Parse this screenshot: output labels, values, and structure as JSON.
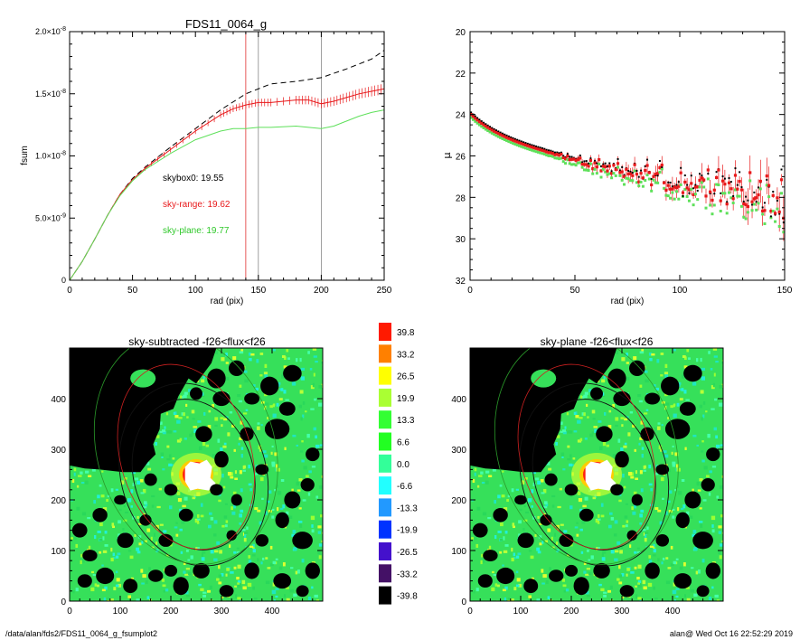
{
  "footer": {
    "left": "/data/alan/fds2/FDS11_0064_g_fsumplot2",
    "right": "alan@  Wed Oct 16 22:52:29 2019"
  },
  "colors": {
    "total": "#000000",
    "sky_range": "#e8181a",
    "sky_plane": "#5ee05a",
    "vline_red": "#e03030",
    "vline_grey": "#888888"
  },
  "chart_data": [
    {
      "type": "line",
      "title": "FDS11_0064_g",
      "xlabel": "rad (pix)",
      "ylabel": "fsum",
      "xlim": [
        0,
        250
      ],
      "ylim": [
        0,
        2e-08
      ],
      "xticks": [
        "0",
        "50",
        "100",
        "150",
        "200",
        "250"
      ],
      "yticks": [
        {
          "v": 0,
          "label": "0"
        },
        {
          "v": 5e-09,
          "label": "5.0×10",
          "exp": "-9"
        },
        {
          "v": 1e-08,
          "label": "1.0×10",
          "exp": "-8"
        },
        {
          "v": 1.5e-08,
          "label": "1.5×10",
          "exp": "-8"
        },
        {
          "v": 2e-08,
          "label": "2.0×10",
          "exp": "-8"
        }
      ],
      "vlines": [
        140,
        150,
        200
      ],
      "annotations": [
        {
          "text": "skybox0: 19.55",
          "color": "#000000"
        },
        {
          "text": "sky-range: 19.62",
          "color": "#e8181a"
        },
        {
          "text": "sky-plane: 19.77",
          "color": "#2fc82a"
        }
      ],
      "series": [
        {
          "style": "dashed",
          "color": "#000000",
          "x": [
            0,
            10,
            20,
            30,
            40,
            50,
            60,
            80,
            100,
            120,
            140,
            160,
            180,
            200,
            220,
            240,
            250
          ],
          "y": [
            0,
            1.5e-09,
            3.3e-09,
            5.2e-09,
            6.9e-09,
            8.2e-09,
            9.1e-09,
            1.07e-08,
            1.22e-08,
            1.37e-08,
            1.5e-08,
            1.58e-08,
            1.6e-08,
            1.63e-08,
            1.7e-08,
            1.78e-08,
            1.85e-08
          ]
        },
        {
          "style": "solid-errorbars",
          "color": "#e8181a",
          "x": [
            0,
            10,
            20,
            30,
            40,
            50,
            60,
            80,
            100,
            120,
            130,
            140,
            150,
            160,
            180,
            190,
            200,
            210,
            220,
            230,
            240,
            250
          ],
          "y": [
            0,
            1.5e-09,
            3.3e-09,
            5.2e-09,
            6.9e-09,
            8.1e-09,
            9e-09,
            1.05e-08,
            1.2e-08,
            1.33e-08,
            1.38e-08,
            1.41e-08,
            1.43e-08,
            1.43e-08,
            1.45e-08,
            1.45e-08,
            1.42e-08,
            1.44e-08,
            1.47e-08,
            1.5e-08,
            1.52e-08,
            1.54e-08
          ]
        },
        {
          "style": "solid",
          "color": "#5ee05a",
          "x": [
            0,
            10,
            20,
            30,
            40,
            50,
            60,
            80,
            100,
            120,
            130,
            140,
            150,
            160,
            180,
            190,
            200,
            210,
            220,
            230,
            240,
            250
          ],
          "y": [
            0,
            1.5e-09,
            3.3e-09,
            5.2e-09,
            6.8e-09,
            8e-09,
            8.9e-09,
            1.02e-08,
            1.13e-08,
            1.2e-08,
            1.22e-08,
            1.22e-08,
            1.23e-08,
            1.23e-08,
            1.24e-08,
            1.23e-08,
            1.22e-08,
            1.24e-08,
            1.28e-08,
            1.32e-08,
            1.35e-08,
            1.37e-08
          ]
        }
      ]
    },
    {
      "type": "scatter",
      "title": "",
      "xlabel": "rad (pix)",
      "ylabel": "μ",
      "xlim": [
        0,
        150
      ],
      "ylim": [
        32,
        20
      ],
      "xticks": [
        "0",
        "50",
        "100",
        "150"
      ],
      "yticks": [
        "20",
        "22",
        "24",
        "26",
        "28",
        "30",
        "32"
      ],
      "model": "mu = 23.95 + 3.3*log10(1 + r/14) + noise growing with r",
      "points_shown": "≈150 per series",
      "series": [
        {
          "color": "#e8181a",
          "marker": "square-errorbar"
        },
        {
          "color": "#5ee05a",
          "marker": "square"
        },
        {
          "color": "#000000",
          "marker": "small-square"
        }
      ]
    },
    {
      "type": "heatmap",
      "title": "sky-subtracted -f26<flux<f26",
      "xlim": [
        0,
        500
      ],
      "ylim": [
        0,
        500
      ],
      "xticks": [
        "0",
        "100",
        "200",
        "300",
        "400"
      ],
      "yticks": [
        "0",
        "100",
        "200",
        "300",
        "400"
      ]
    },
    {
      "type": "heatmap",
      "title": "sky-plane -f26<flux<f26",
      "xlim": [
        0,
        500
      ],
      "ylim": [
        0,
        500
      ],
      "xticks": [
        "0",
        "100",
        "200",
        "300",
        "400"
      ],
      "yticks": [
        "0",
        "100",
        "200",
        "300",
        "400"
      ]
    },
    {
      "type": "colorbar",
      "labels": [
        "39.8",
        "33.2",
        "26.5",
        "19.9",
        "13.3",
        "6.6",
        "0.0",
        "-6.6",
        "-13.3",
        "-19.9",
        "-26.5",
        "-33.2",
        "-39.8"
      ],
      "colors": [
        "#ff1a00",
        "#ff8000",
        "#ffff00",
        "#aaff33",
        "#33ff33",
        "#22ff22",
        "#33ff99",
        "#22ffff",
        "#2299ff",
        "#0033ff",
        "#4411cc",
        "#441166",
        "#000000"
      ]
    }
  ]
}
